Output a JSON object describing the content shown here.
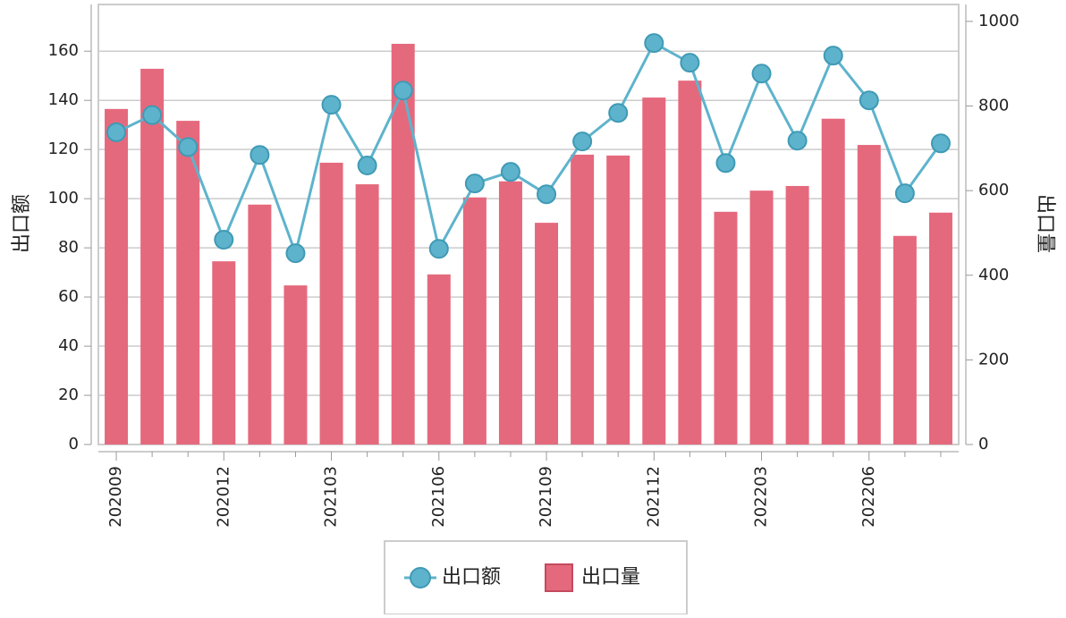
{
  "chart_data": {
    "type": "bar_line",
    "categories": [
      "202009",
      null,
      null,
      "202012",
      null,
      null,
      "202103",
      null,
      null,
      "202106",
      null,
      null,
      "202109",
      null,
      null,
      "202112",
      null,
      null,
      "202203",
      null,
      null,
      "202206",
      null,
      null
    ],
    "ylabel": "出口额",
    "y2label": "出口量",
    "ylim": [
      0,
      179
    ],
    "yticks": [
      0,
      20,
      40,
      60,
      80,
      100,
      120,
      140,
      160
    ],
    "y2lim": [
      0,
      1040
    ],
    "y2ticks": [
      0,
      200,
      400,
      600,
      800,
      1000
    ],
    "grid": true,
    "legend": "bottom",
    "series": [
      {
        "name": "出口额",
        "type": "line",
        "color": "#5eb3cc",
        "axis": "y",
        "values": [
          127,
          134,
          121,
          83.3,
          117.8,
          77.8,
          138.2,
          113.5,
          144,
          79.6,
          106.2,
          110.9,
          101.8,
          123.3,
          134.9,
          163.3,
          155.3,
          114.5,
          150.9,
          123.6,
          158.2,
          140,
          102.2,
          122.5
        ]
      },
      {
        "name": "出口量",
        "type": "bar",
        "color": "#e5697d",
        "axis": "y2",
        "values": [
          793,
          888,
          765,
          433,
          567,
          376,
          666,
          615,
          947,
          402,
          584,
          622,
          524,
          685,
          683,
          820,
          860,
          550,
          600,
          611,
          770,
          708,
          493,
          548
        ]
      }
    ]
  }
}
